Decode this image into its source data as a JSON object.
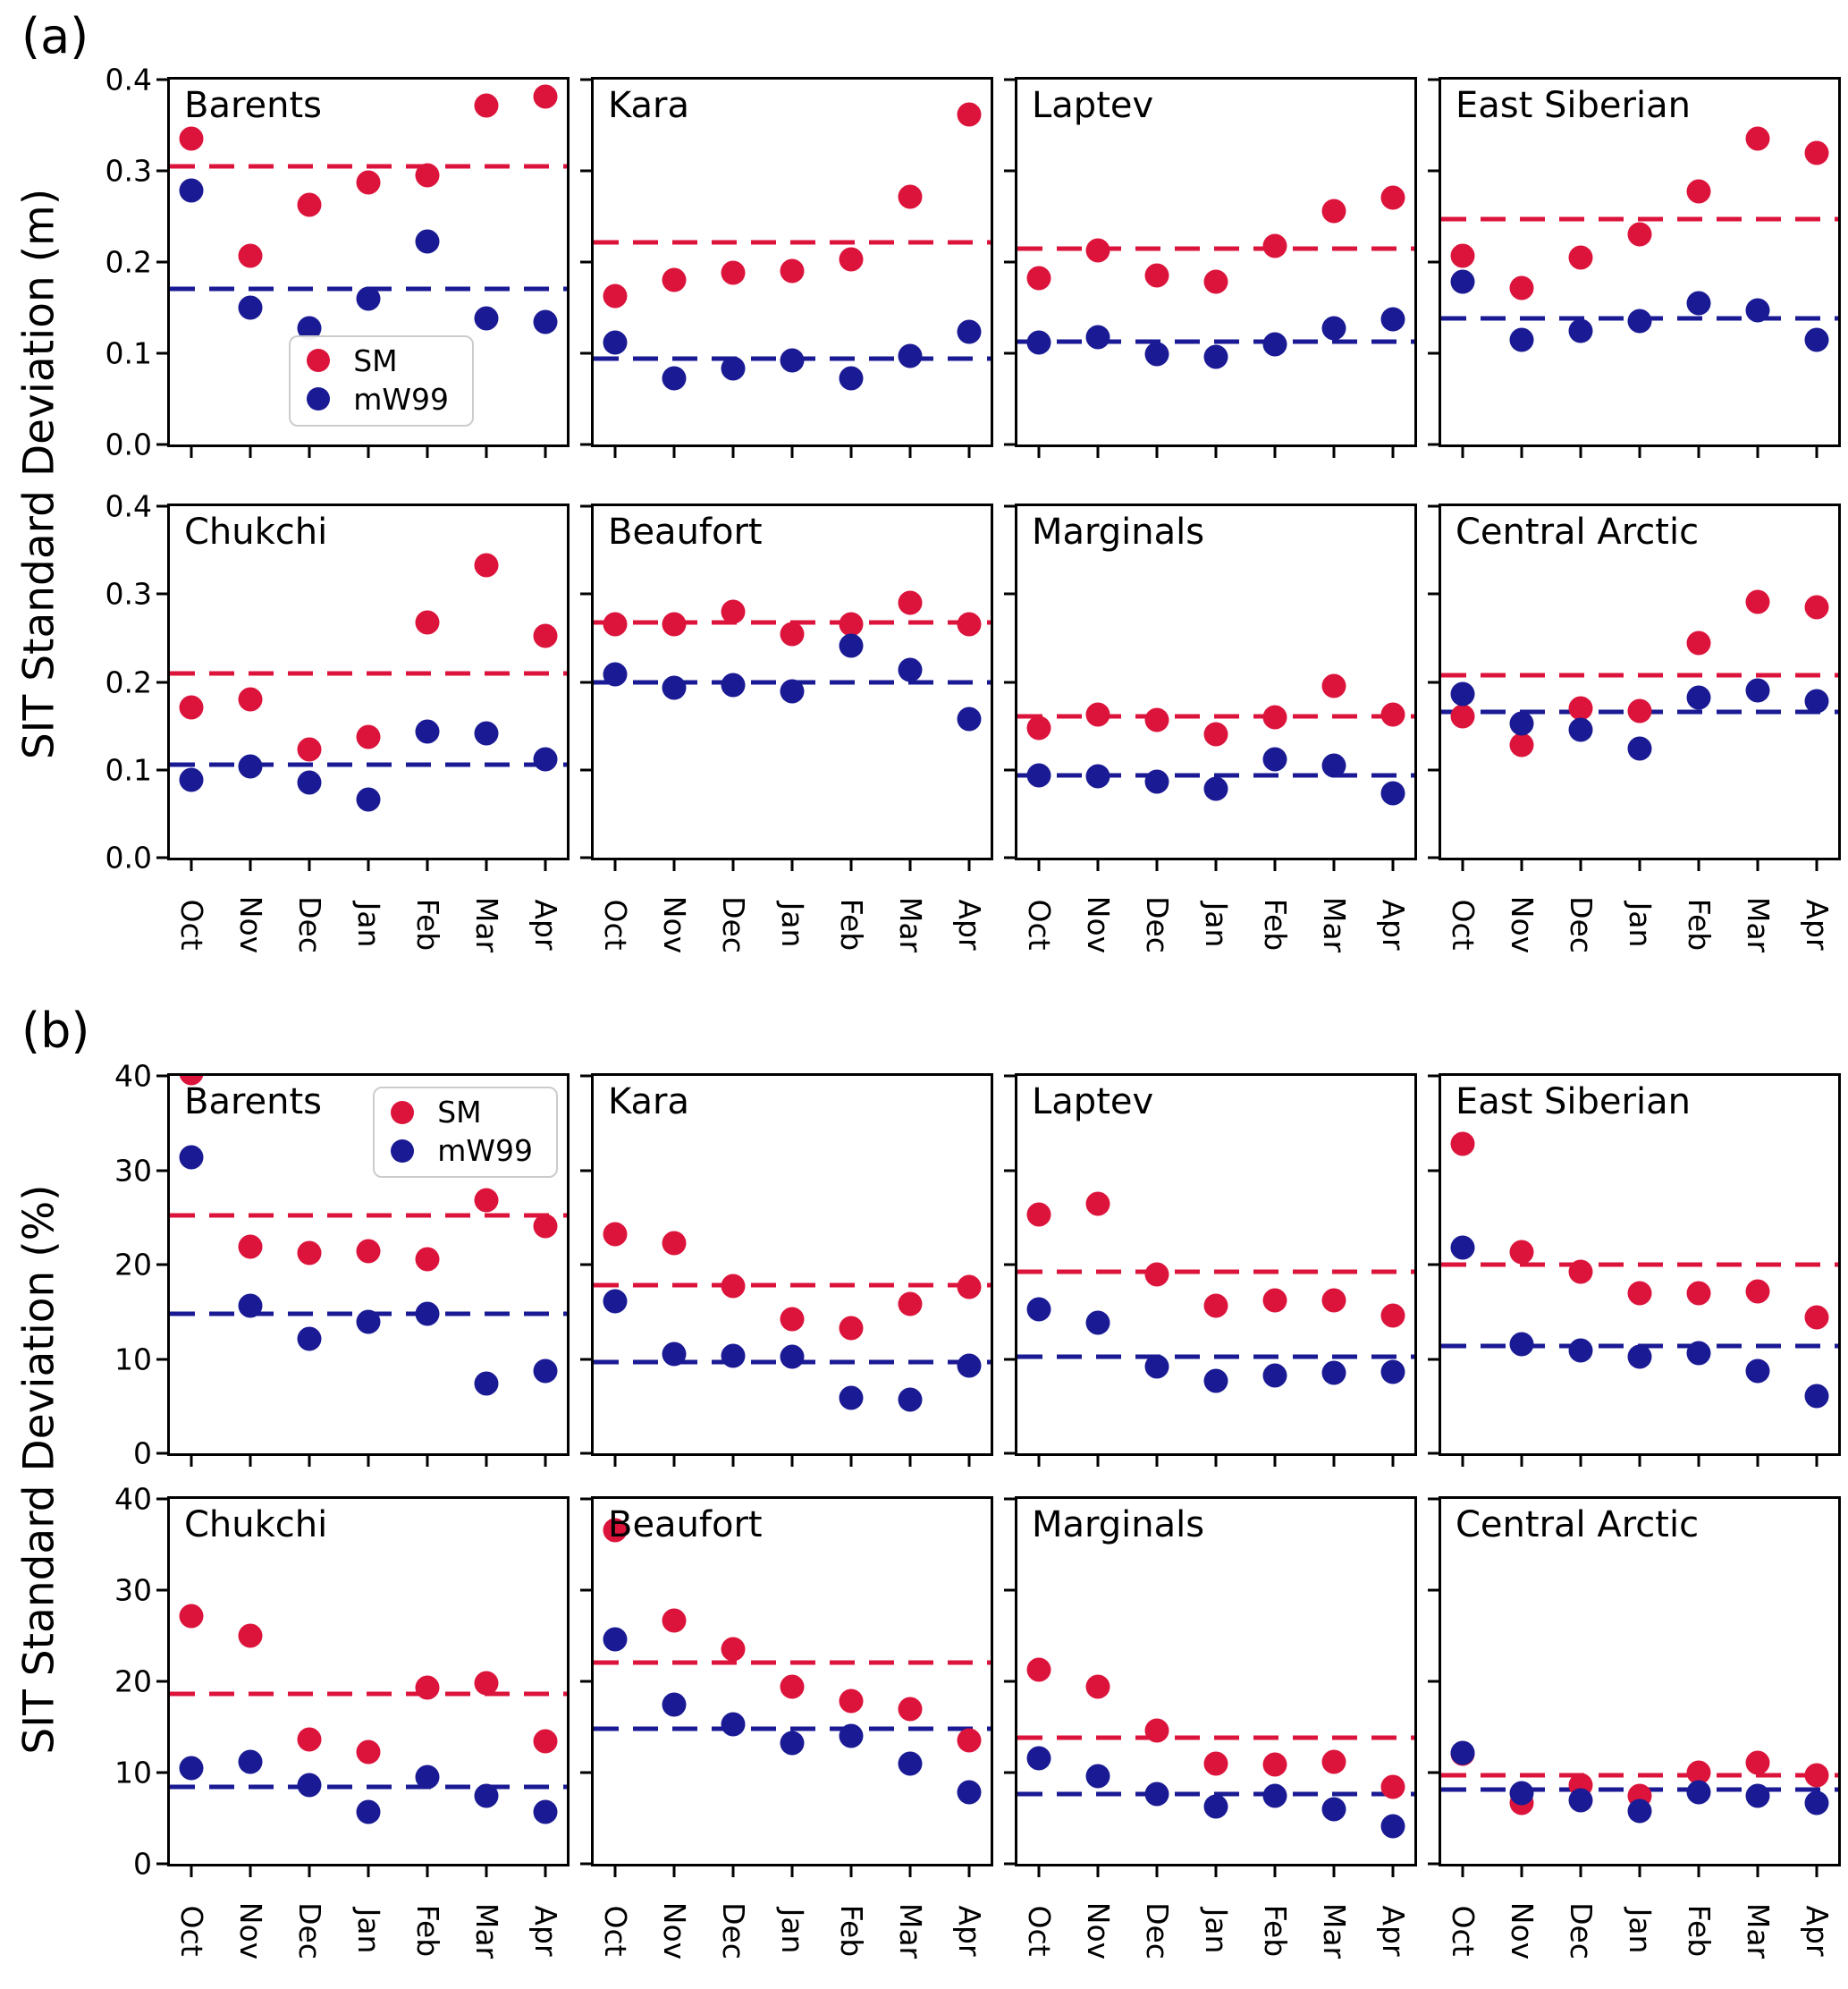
{
  "figure": {
    "panel_a_label": "(a)",
    "panel_b_label": "(b)",
    "colors": {
      "sm": "#dc143c",
      "mw99": "#1a1a94",
      "axis": "#000000",
      "legend_border": "#cccccc"
    },
    "legend": {
      "sm_label": "SM",
      "mw99_label": "mW99"
    }
  },
  "chart_data": [
    {
      "type": "scatter",
      "panel": "a",
      "title": "",
      "ylabel": "SIT Standard Deviation (m)",
      "xlabel": "",
      "ylim": [
        0,
        0.4
      ],
      "yticks": [
        "0.0",
        "0.1",
        "0.2",
        "0.3",
        "0.4"
      ],
      "grid": false,
      "categories": [
        "Oct",
        "Nov",
        "Dec",
        "Jan",
        "Feb",
        "Mar",
        "Apr"
      ],
      "series_names": [
        "SM",
        "mW99"
      ],
      "subplots": [
        {
          "title": "Barents",
          "legend_position": "lower-center",
          "sm": [
            0.335,
            0.207,
            0.263,
            0.287,
            0.295,
            0.372,
            0.381
          ],
          "mw99": [
            0.278,
            0.15,
            0.127,
            0.16,
            0.223,
            0.138,
            0.134
          ],
          "sm_mean": 0.305,
          "mw99_mean": 0.171
        },
        {
          "title": "Kara",
          "legend_position": null,
          "sm": [
            0.163,
            0.18,
            0.188,
            0.19,
            0.203,
            0.272,
            0.362
          ],
          "mw99": [
            0.112,
            0.073,
            0.083,
            0.092,
            0.073,
            0.097,
            0.124
          ],
          "sm_mean": 0.222,
          "mw99_mean": 0.094
        },
        {
          "title": "Laptev",
          "legend_position": null,
          "sm": [
            0.182,
            0.213,
            0.185,
            0.178,
            0.218,
            0.256,
            0.271
          ],
          "mw99": [
            0.112,
            0.118,
            0.099,
            0.096,
            0.11,
            0.127,
            0.137
          ],
          "sm_mean": 0.215,
          "mw99_mean": 0.113
        },
        {
          "title": "East Siberian",
          "legend_position": null,
          "sm": [
            0.207,
            0.172,
            0.205,
            0.23,
            0.277,
            0.335,
            0.32
          ],
          "mw99": [
            0.178,
            0.115,
            0.125,
            0.135,
            0.155,
            0.147,
            0.115
          ],
          "sm_mean": 0.247,
          "mw99_mean": 0.138
        },
        {
          "title": "Chukchi",
          "legend_position": null,
          "sm": [
            0.171,
            0.18,
            0.123,
            0.137,
            0.268,
            0.333,
            0.252
          ],
          "mw99": [
            0.089,
            0.104,
            0.086,
            0.066,
            0.144,
            0.141,
            0.112
          ],
          "sm_mean": 0.21,
          "mw99_mean": 0.106
        },
        {
          "title": "Beaufort",
          "legend_position": null,
          "sm": [
            0.266,
            0.266,
            0.28,
            0.254,
            0.266,
            0.29,
            0.266
          ],
          "mw99": [
            0.209,
            0.193,
            0.196,
            0.189,
            0.241,
            0.214,
            0.158
          ],
          "sm_mean": 0.268,
          "mw99_mean": 0.2
        },
        {
          "title": "Marginals",
          "legend_position": null,
          "sm": [
            0.148,
            0.163,
            0.157,
            0.14,
            0.16,
            0.195,
            0.163
          ],
          "mw99": [
            0.094,
            0.093,
            0.087,
            0.078,
            0.112,
            0.105,
            0.073
          ],
          "sm_mean": 0.161,
          "mw99_mean": 0.094
        },
        {
          "title": "Central Arctic",
          "legend_position": null,
          "sm": [
            0.161,
            0.128,
            0.17,
            0.167,
            0.244,
            0.291,
            0.285
          ],
          "mw99": [
            0.186,
            0.153,
            0.146,
            0.124,
            0.182,
            0.19,
            0.178
          ],
          "sm_mean": 0.208,
          "mw99_mean": 0.166
        }
      ]
    },
    {
      "type": "scatter",
      "panel": "b",
      "title": "",
      "ylabel": "SIT Standard Deviation (%)",
      "xlabel": "",
      "ylim": [
        0,
        40
      ],
      "yticks": [
        "0",
        "10",
        "20",
        "30",
        "40"
      ],
      "grid": false,
      "categories": [
        "Oct",
        "Nov",
        "Dec",
        "Jan",
        "Feb",
        "Mar",
        "Apr"
      ],
      "series_names": [
        "SM",
        "mW99"
      ],
      "subplots": [
        {
          "title": "Barents",
          "legend_position": "upper-right",
          "sm": [
            40.3,
            21.9,
            21.2,
            21.4,
            20.6,
            26.8,
            24.1
          ],
          "mw99": [
            31.4,
            15.6,
            12.1,
            13.9,
            14.8,
            7.4,
            8.7
          ],
          "sm_mean": 25.2,
          "mw99_mean": 14.8
        },
        {
          "title": "Kara",
          "legend_position": null,
          "sm": [
            23.2,
            22.3,
            17.7,
            14.2,
            13.3,
            15.8,
            17.6
          ],
          "mw99": [
            16.1,
            10.5,
            10.3,
            10.2,
            5.9,
            5.7,
            9.3
          ],
          "sm_mean": 17.8,
          "mw99_mean": 9.7
        },
        {
          "title": "Laptev",
          "legend_position": null,
          "sm": [
            25.3,
            26.4,
            19.0,
            15.6,
            16.2,
            16.2,
            14.6
          ],
          "mw99": [
            15.3,
            13.8,
            9.2,
            7.7,
            8.2,
            8.5,
            8.6
          ],
          "sm_mean": 19.2,
          "mw99_mean": 10.2
        },
        {
          "title": "East Siberian",
          "legend_position": null,
          "sm": [
            32.8,
            21.3,
            19.2,
            17.0,
            17.0,
            17.2,
            14.4
          ],
          "mw99": [
            21.8,
            11.6,
            10.9,
            10.2,
            10.6,
            8.7,
            6.1
          ],
          "sm_mean": 20.0,
          "mw99_mean": 11.4
        },
        {
          "title": "Chukchi",
          "legend_position": null,
          "sm": [
            27.2,
            25.0,
            13.6,
            12.3,
            19.3,
            19.8,
            13.4
          ],
          "mw99": [
            10.5,
            11.2,
            8.6,
            5.7,
            9.5,
            7.5,
            5.7
          ],
          "sm_mean": 18.6,
          "mw99_mean": 8.4
        },
        {
          "title": "Beaufort",
          "legend_position": null,
          "sm": [
            36.6,
            26.7,
            23.5,
            19.4,
            17.8,
            17.0,
            13.5
          ],
          "mw99": [
            24.6,
            17.5,
            15.3,
            13.2,
            14.0,
            11.0,
            7.8
          ],
          "sm_mean": 22.1,
          "mw99_mean": 14.8
        },
        {
          "title": "Marginals",
          "legend_position": null,
          "sm": [
            21.3,
            19.4,
            14.6,
            11.0,
            10.9,
            11.2,
            8.4
          ],
          "mw99": [
            11.6,
            9.6,
            7.6,
            6.3,
            7.5,
            6.0,
            4.1
          ],
          "sm_mean": 13.8,
          "mw99_mean": 7.6
        },
        {
          "title": "Central Arctic",
          "legend_position": null,
          "sm": [
            12.1,
            6.7,
            8.6,
            7.5,
            10.0,
            11.1,
            9.7
          ],
          "mw99": [
            12.2,
            7.7,
            7.0,
            5.8,
            7.8,
            7.5,
            6.7
          ],
          "sm_mean": 9.7,
          "mw99_mean": 8.1
        }
      ]
    }
  ]
}
